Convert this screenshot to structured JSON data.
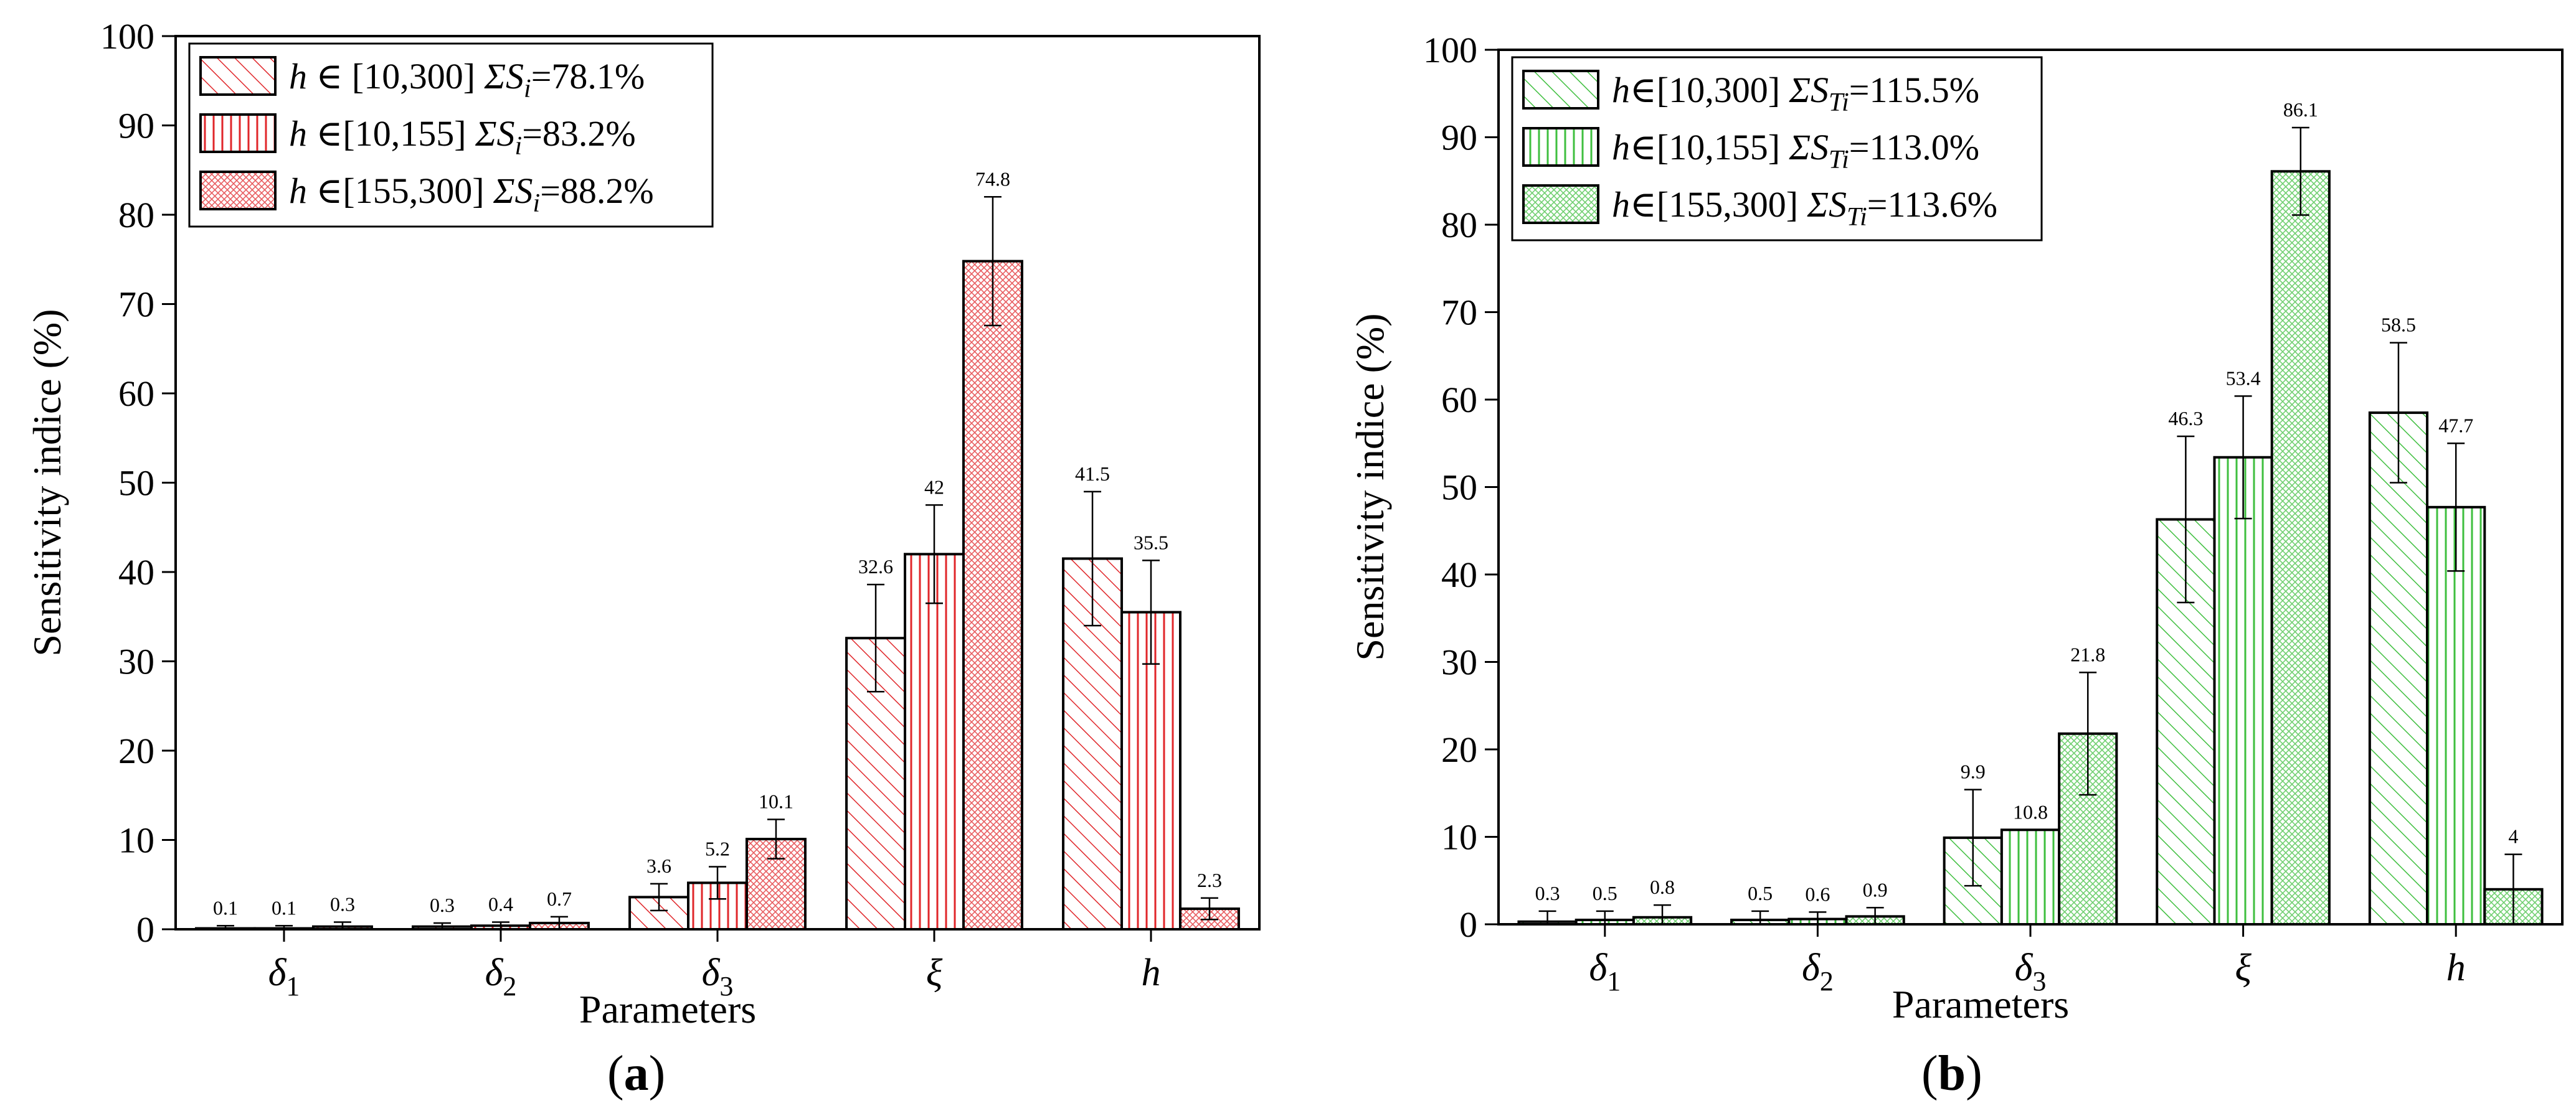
{
  "chart_data": [
    {
      "type": "bar",
      "panel_label": "a",
      "title": "",
      "xlabel": "Parameters",
      "ylabel": "Sensitivity  indice (%)",
      "ylim": [
        0,
        100
      ],
      "yticks": [
        0,
        10,
        20,
        30,
        40,
        50,
        60,
        70,
        80,
        90,
        100
      ],
      "categories": [
        {
          "base": "δ",
          "sub": "1"
        },
        {
          "base": "δ",
          "sub": "2"
        },
        {
          "base": "δ",
          "sub": "3"
        },
        {
          "base": "ξ",
          "sub": ""
        },
        {
          "base": "h",
          "sub": ""
        }
      ],
      "legend_position": "top-left",
      "color": "#e0262a",
      "series": [
        {
          "name": "h ∈ [10,300]  ΣSi=78.1%",
          "leg_h": "h",
          "leg_range": " ∈ [10,300]",
          "leg_sigma": "ΣS",
          "leg_sub": "i",
          "leg_value": "=78.1%",
          "pattern": "diagonal",
          "values": [
            0.1,
            0.3,
            3.6,
            32.6,
            41.5
          ],
          "errors": [
            0.3,
            0.4,
            1.5,
            6.0,
            7.5
          ],
          "labels": [
            "0.1",
            "0.3",
            "3.6",
            "32.6",
            "41.5"
          ]
        },
        {
          "name": "h ∈[10,155]  ΣSi=83.2%",
          "leg_h": "h",
          "leg_range": " ∈[10,155]",
          "leg_sigma": "ΣS",
          "leg_sub": "i",
          "leg_value": "=83.2%",
          "pattern": "vertical",
          "values": [
            0.1,
            0.4,
            5.2,
            42,
            35.5
          ],
          "errors": [
            0.3,
            0.4,
            1.8,
            5.5,
            5.8
          ],
          "labels": [
            "0.1",
            "0.4",
            "5.2",
            "42",
            "35.5"
          ]
        },
        {
          "name": "h ∈[155,300]  ΣSi=88.2%",
          "leg_h": "h",
          "leg_range": " ∈[155,300]",
          "leg_sigma": "ΣS",
          "leg_sub": "i",
          "leg_value": "=88.2%",
          "pattern": "dots",
          "values": [
            0.3,
            0.7,
            10.1,
            74.8,
            2.3
          ],
          "errors": [
            0.5,
            0.7,
            2.2,
            7.2,
            1.2
          ],
          "labels": [
            "0.3",
            "0.7",
            "10.1",
            "74.8",
            "2.3"
          ]
        }
      ]
    },
    {
      "type": "bar",
      "panel_label": "b",
      "title": "",
      "xlabel": "Parameters",
      "ylabel": "Sensitivity  indice (%)",
      "ylim": [
        0,
        100
      ],
      "yticks": [
        0,
        10,
        20,
        30,
        40,
        50,
        60,
        70,
        80,
        90,
        100
      ],
      "categories": [
        {
          "base": "δ",
          "sub": "1"
        },
        {
          "base": "δ",
          "sub": "2"
        },
        {
          "base": "δ",
          "sub": "3"
        },
        {
          "base": "ξ",
          "sub": ""
        },
        {
          "base": "h",
          "sub": ""
        }
      ],
      "legend_position": "top-left",
      "color": "#3fbf3f",
      "series": [
        {
          "name": "h∈[10,300]  ΣSTi=115.5%",
          "leg_h": "h",
          "leg_range": "∈[10,300]",
          "leg_sigma": "ΣS",
          "leg_sub": "Ti",
          "leg_value": "=115.5%",
          "pattern": "diagonal",
          "values": [
            0.3,
            0.5,
            9.9,
            46.3,
            58.5
          ],
          "errors": [
            1.2,
            1.0,
            5.5,
            9.5,
            8.0
          ],
          "labels": [
            "0.3",
            "0.5",
            "9.9",
            "46.3",
            "58.5"
          ]
        },
        {
          "name": "h∈[10,155]  ΣSTi=113.0%",
          "leg_h": "h",
          "leg_range": "∈[10,155]",
          "leg_sigma": "ΣS",
          "leg_sub": "Ti",
          "leg_value": "=113.0%",
          "pattern": "vertical",
          "values": [
            0.5,
            0.6,
            10.8,
            53.4,
            47.7
          ],
          "errors": [
            1.0,
            0.8,
            0.0,
            7.0,
            7.3
          ],
          "labels": [
            "0.5",
            "0.6",
            "10.8",
            "53.4",
            "47.7"
          ]
        },
        {
          "name": "h∈[155,300]  ΣSTi=113.6%",
          "leg_h": "h",
          "leg_range": "∈[155,300]",
          "leg_sigma": "ΣS",
          "leg_sub": "Ti",
          "leg_value": "=113.6%",
          "pattern": "dots",
          "values": [
            0.8,
            0.9,
            21.8,
            86.1,
            4
          ],
          "errors": [
            1.4,
            1.0,
            7.0,
            5.0,
            4.0
          ],
          "labels": [
            "0.8",
            "0.9",
            "21.8",
            "86.1",
            "4"
          ]
        }
      ]
    }
  ]
}
